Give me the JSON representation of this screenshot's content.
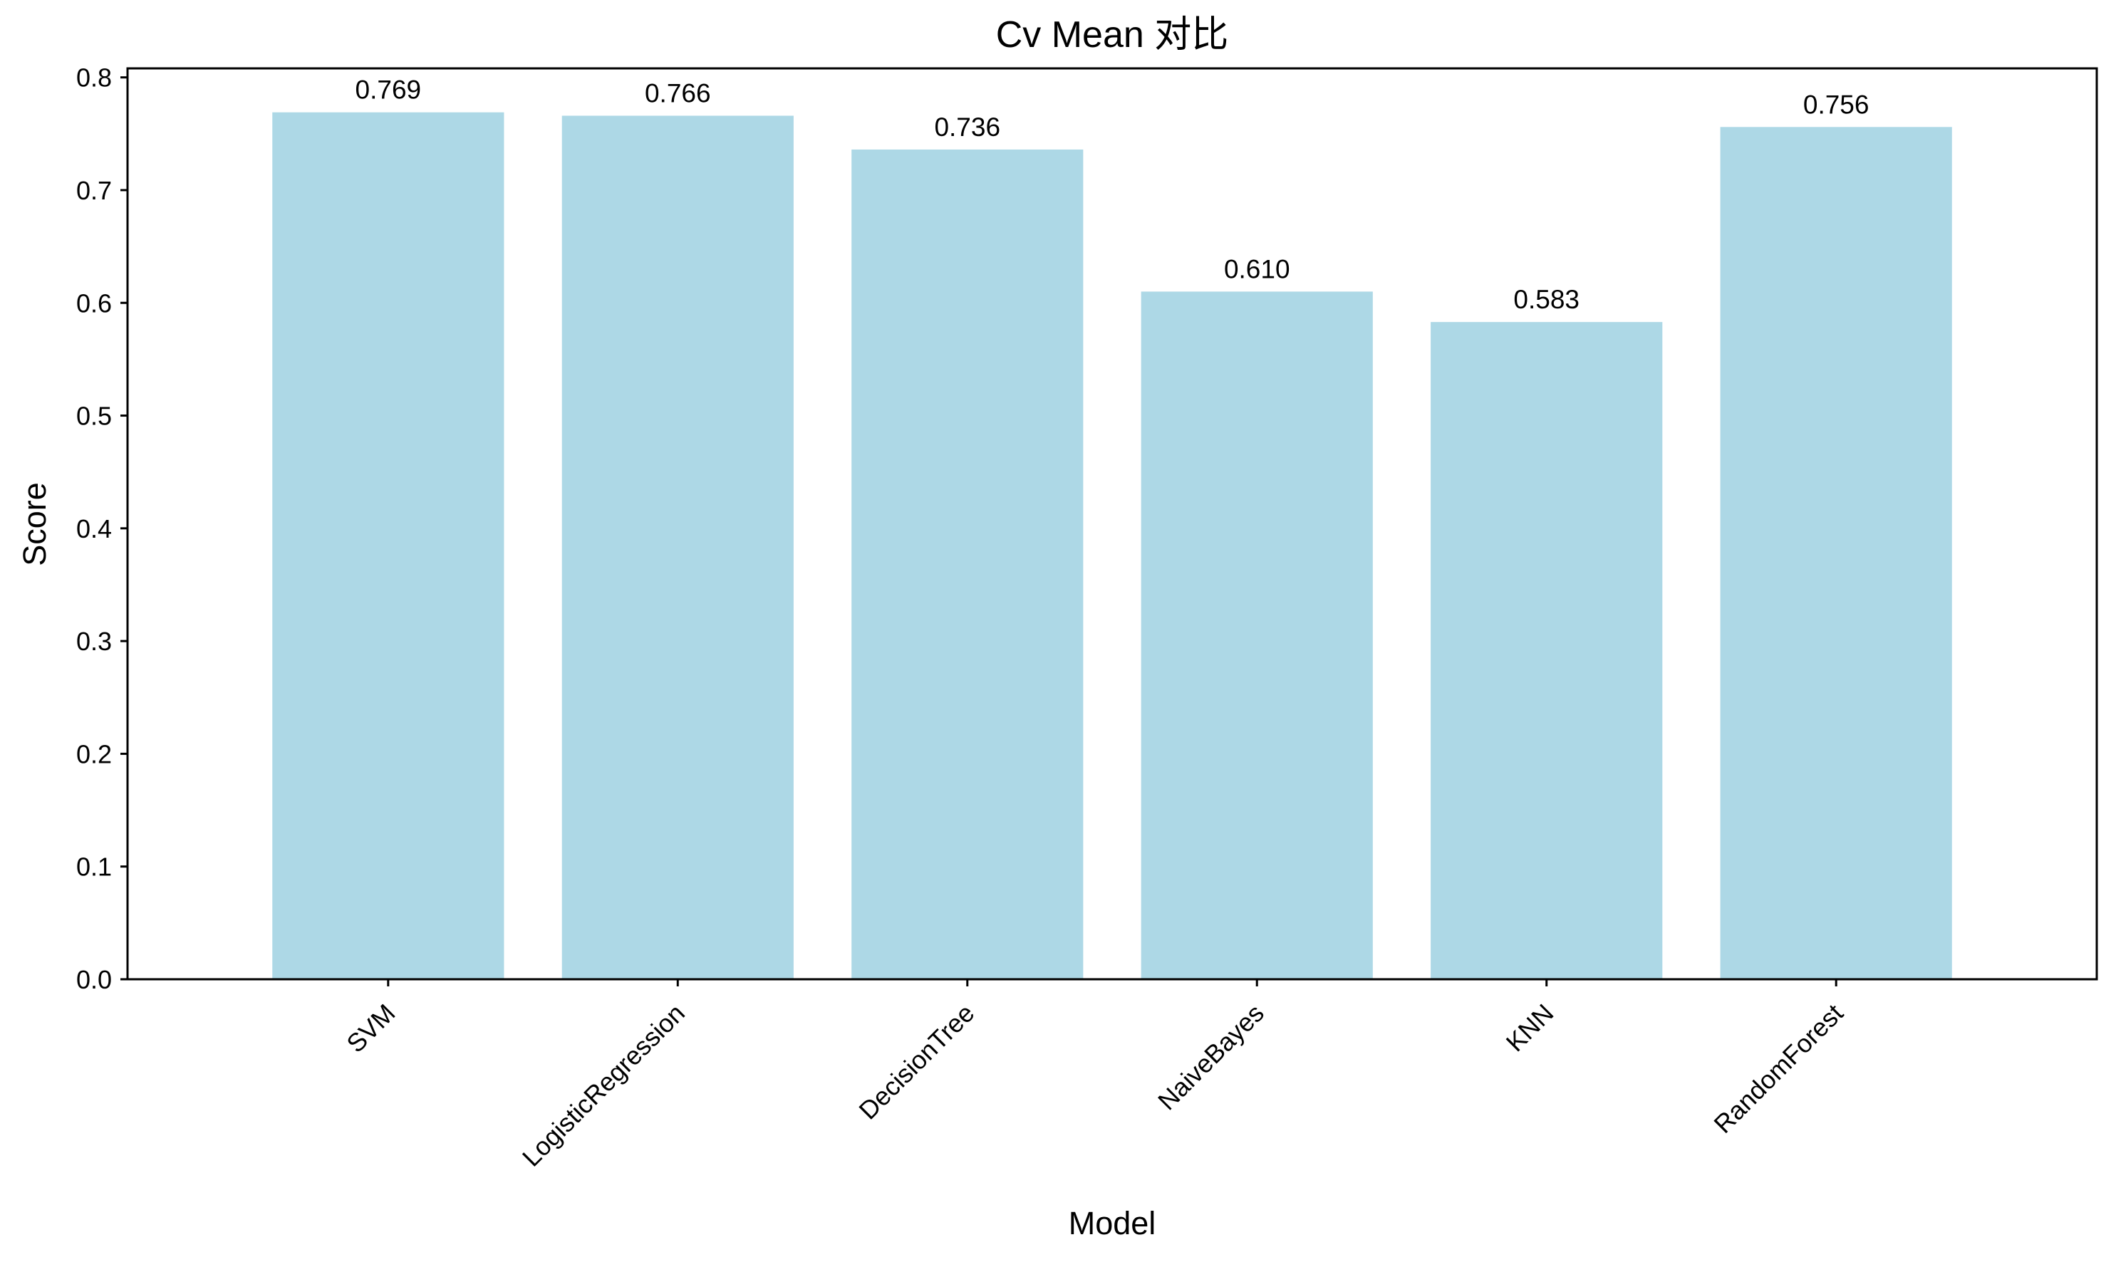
{
  "chart_data": {
    "type": "bar",
    "title": "Cv Mean 对比",
    "xlabel": "Model",
    "ylabel": "Score",
    "categories": [
      "SVM",
      "LogisticRegression",
      "DecisionTree",
      "NaiveBayes",
      "KNN",
      "RandomForest"
    ],
    "values": [
      0.769,
      0.766,
      0.736,
      0.61,
      0.583,
      0.756
    ],
    "value_labels": [
      "0.769",
      "0.766",
      "0.736",
      "0.610",
      "0.583",
      "0.756"
    ],
    "ylim": [
      0.0,
      0.808
    ],
    "yticks": [
      0.0,
      0.1,
      0.2,
      0.3,
      0.4,
      0.5,
      0.6,
      0.7,
      0.8
    ],
    "ytick_labels": [
      "0.0",
      "0.1",
      "0.2",
      "0.3",
      "0.4",
      "0.5",
      "0.6",
      "0.7",
      "0.8"
    ],
    "grid": false,
    "legend": "none",
    "bar_color": "#add8e6",
    "xtick_rotation": 45
  }
}
